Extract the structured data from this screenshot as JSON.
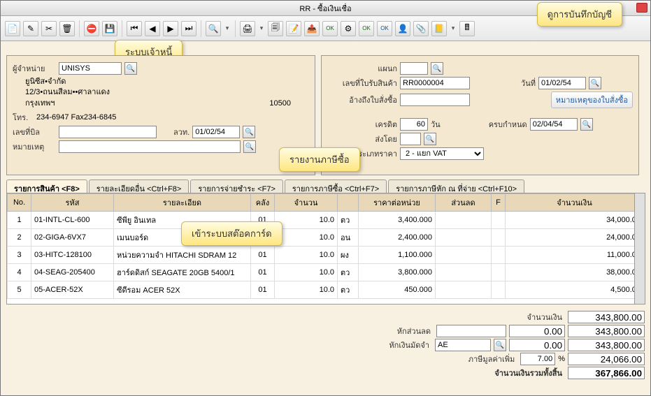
{
  "window": {
    "title": "RR - ซื้อเงินเชื่อ"
  },
  "callouts": {
    "top_right": "ดูการบันทึกบัญชี",
    "supplier": "ระบบเจ้าหนี้",
    "tax_report": "รายงานภาษีซื้อ",
    "stock_card": "เข้าระบบสต๊อคการ์ด"
  },
  "left": {
    "vendor_label": "ผู้จำหน่าย",
    "vendor_value": "UNISYS",
    "vendor_lines": [
      "ยูนิซีส•จำกัด",
      "12/3•ถนนสีลม••ศาลาแดง",
      "กรุงเทพฯ"
    ],
    "postal": "10500",
    "phone_label": "โทร.",
    "phone_value": "234-6947 Fax234-6845",
    "bill_no_label": "เลขที่บิล",
    "bill_no_value": "",
    "bill_date_label": "ลวท.",
    "bill_date_value": "01/02/54",
    "remark_label": "หมายเหตุ",
    "remark_value": ""
  },
  "right": {
    "dept_label": "แผนก",
    "dept_value": "",
    "rr_no_label": "เลขที่ใบรับสินค้า",
    "rr_no_value": "RR0000004",
    "date_label": "วันที่",
    "date_value": "01/02/54",
    "po_ref_label": "อ้างถึงใบสั่งซื้อ",
    "po_ref_value": "",
    "po_note": "หมายเหตุของใบสั่งซื้อ",
    "credit_label": "เครดิต",
    "credit_value": "60",
    "credit_unit": "วัน",
    "due_label": "ครบกำหนด",
    "due_value": "02/04/54",
    "shipby_label": "ส่งโดย",
    "shipby_value": "",
    "price_type_label": "ประเภทราคา",
    "price_type_value": "2 - แยก VAT"
  },
  "tabs": [
    "รายการสินค้า <F8>",
    "รายละเอียดอื่น <Ctrl+F8>",
    "รายการจ่ายชำระ <F7>",
    "รายการภาษีซื้อ <Ctrl+F7>",
    "รายการภาษีหัก ณ ที่จ่าย <Ctrl+F10>"
  ],
  "grid": {
    "headers": {
      "no": "No.",
      "code": "รหัส",
      "desc": "รายละเอียด",
      "wh": "คลัง",
      "qty": "จำนวน",
      "unit": "",
      "price": "ราคาต่อหน่วย",
      "disc": "ส่วนลด",
      "f": "F",
      "amount": "จำนวนเงิน"
    },
    "rows": [
      {
        "no": "1",
        "code": "01-INTL-CL-600",
        "desc": "ซีพียู อินเทล",
        "wh": "01",
        "qty": "10.0",
        "unit": "ตว",
        "price": "3,400.000",
        "disc": "",
        "f": "",
        "amount": "34,000.00"
      },
      {
        "no": "2",
        "code": "02-GIGA-6VX7",
        "desc": "เมนบอร์ด",
        "wh": "",
        "qty": "10.0",
        "unit": "อน",
        "price": "2,400.000",
        "disc": "",
        "f": "",
        "amount": "24,000.00"
      },
      {
        "no": "3",
        "code": "03-HITC-128100",
        "desc": "หน่วยความจำ HITACHI SDRAM 12",
        "wh": "01",
        "qty": "10.0",
        "unit": "ผง",
        "price": "1,100.000",
        "disc": "",
        "f": "",
        "amount": "11,000.00"
      },
      {
        "no": "4",
        "code": "04-SEAG-205400",
        "desc": "ฮาร์ดดิสก์ SEAGATE 20GB 5400/1",
        "wh": "01",
        "qty": "10.0",
        "unit": "ตว",
        "price": "3,800.000",
        "disc": "",
        "f": "",
        "amount": "38,000.00"
      },
      {
        "no": "5",
        "code": "05-ACER-52X",
        "desc": "ซีดีรอม ACER 52X",
        "wh": "01",
        "qty": "10.0",
        "unit": "ตว",
        "price": "450.000",
        "disc": "",
        "f": "",
        "amount": "4,500.00"
      }
    ]
  },
  "totals": {
    "subtotal_label": "จำนวนเงิน",
    "subtotal": "343,800.00",
    "disc_label": "หักส่วนลด",
    "disc_in": "",
    "disc_amt": "0.00",
    "after_disc": "343,800.00",
    "deposit_label": "หักเงินมัดจำ",
    "deposit_code": "AE",
    "deposit_amt": "0.00",
    "after_deposit": "343,800.00",
    "vat_label": "ภาษีมูลค่าเพิ่ม",
    "vat_rate": "7.00",
    "vat_unit": "%",
    "vat_amt": "24,066.00",
    "grand_label": "จำนวนเงินรวมทั้งสิ้น",
    "grand": "367,866.00"
  },
  "icons": {
    "new": "📄",
    "edit": "✎",
    "cut": "✂",
    "delete": "🗑",
    "cancel": "⛔",
    "save": "💾",
    "first": "⏮",
    "prev": "◀",
    "next": "▶",
    "last": "⏭",
    "search": "🔍",
    "print": "🖨",
    "preview": "🗐",
    "note": "📝",
    "export": "📤",
    "ok1": "OK",
    "ok2": "OK",
    "ok3": "OK",
    "stamp": "👤",
    "attach": "📎",
    "acct": "📒",
    "calc": "🖩",
    "cfg": "⚙"
  },
  "colors": {
    "panel_bg": "#f5e8d0",
    "header_bg": "#e8d8b8",
    "callout_bg": "#fff5c0"
  }
}
